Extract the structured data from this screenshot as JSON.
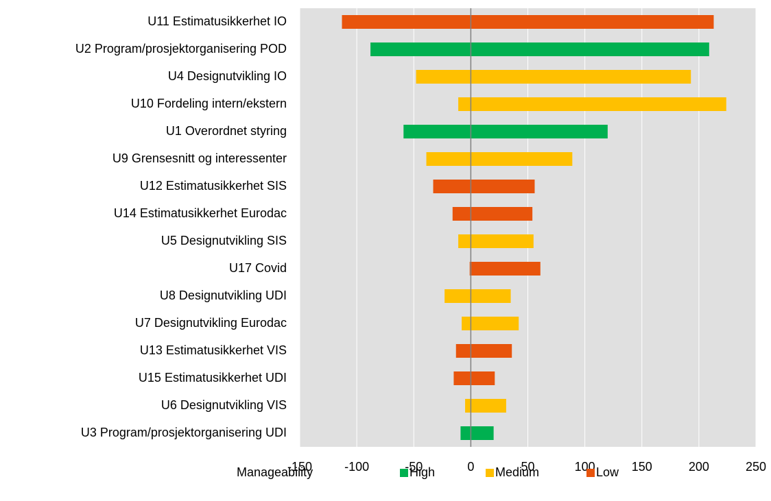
{
  "chart_data": {
    "type": "range-bar",
    "categories": [
      "U11 Estimatusikkerhet IO",
      "U2 Program/prosjektorganisering POD",
      "U4 Designutvikling IO",
      "U10 Fordeling intern/ekstern",
      "U1 Overordnet styring",
      "U9 Grensesnitt og interessenter",
      "U12 Estimatusikkerhet SIS",
      "U14 Estimatusikkerhet Eurodac",
      "U5 Designutvikling SIS",
      "U17 Covid",
      "U8 Designutvikling UDI",
      "U7 Designutvikling Eurodac",
      "U13 Estimatusikkerhet VIS",
      "U15 Estimatusikkerhet UDI",
      "U6 Designutvikling VIS",
      "U3 Program/prosjektorganisering UDI"
    ],
    "legend_title": "Manageability",
    "series": [
      {
        "name": "High",
        "color": "#00b050",
        "low": [
          null,
          -88,
          null,
          null,
          -59,
          null,
          null,
          null,
          null,
          null,
          null,
          null,
          null,
          null,
          null,
          -9
        ],
        "high": [
          null,
          209,
          null,
          null,
          120,
          null,
          null,
          null,
          null,
          null,
          null,
          null,
          null,
          null,
          null,
          20
        ]
      },
      {
        "name": "Medium",
        "color": "#ffc000",
        "low": [
          null,
          null,
          -48,
          -11,
          null,
          -39,
          null,
          null,
          -11,
          null,
          -23,
          -8,
          null,
          null,
          -5,
          null
        ],
        "high": [
          null,
          null,
          193,
          224,
          null,
          89,
          null,
          null,
          55,
          null,
          35,
          42,
          null,
          null,
          31,
          null
        ]
      },
      {
        "name": "Low",
        "color": "#e8540c",
        "low": [
          -113,
          null,
          null,
          null,
          null,
          null,
          -33,
          -16,
          null,
          -1,
          null,
          null,
          -13,
          -15,
          null,
          null
        ],
        "high": [
          213,
          null,
          null,
          null,
          null,
          null,
          56,
          54,
          null,
          61,
          null,
          null,
          36,
          21,
          null,
          null
        ]
      }
    ],
    "xlim": [
      -150,
      250
    ],
    "xticks": [
      -150,
      -100,
      -50,
      0,
      50,
      100,
      150,
      200,
      250
    ],
    "grid": true
  }
}
